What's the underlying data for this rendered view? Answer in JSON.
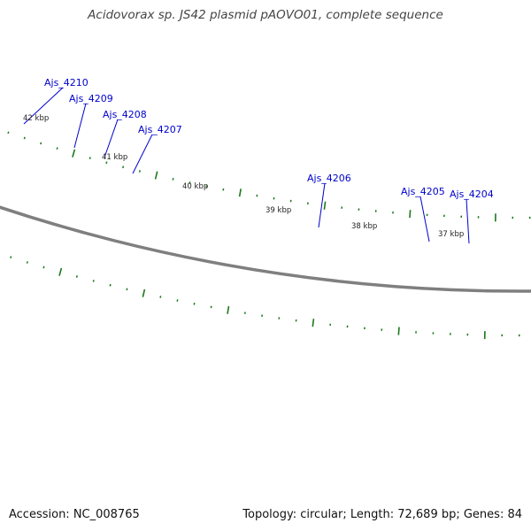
{
  "title": "Acidovorax sp. JS42 plasmid pAOVO01, complete sequence",
  "footer": {
    "accession": "Accession: NC_008765",
    "summary": "Topology: circular; Length: 72,689 bp; Genes: 84"
  },
  "map": {
    "colors": {
      "gene": "#0000ee",
      "gene_highlight": "#6b6bff",
      "label": "#0000cc",
      "label_line": "#0000cc",
      "backbone": "#7f7f7f",
      "tick": "#1a7a1a"
    },
    "genes": [
      {
        "name": "Ajs_4210",
        "strand": "+"
      },
      {
        "name": "Ajs_4209",
        "strand": "+"
      },
      {
        "name": "Ajs_4208",
        "strand": "+"
      },
      {
        "name": "Ajs_4207",
        "strand": "+"
      },
      {
        "name": "Ajs_4206",
        "strand": "+"
      },
      {
        "name": "Ajs_4205",
        "strand": "+"
      },
      {
        "name": "Ajs_4204",
        "strand": "+"
      }
    ],
    "position_labels": [
      "42 kbp",
      "41 kbp",
      "40 kbp",
      "39 kbp",
      "38 kbp",
      "37 kbp"
    ]
  }
}
